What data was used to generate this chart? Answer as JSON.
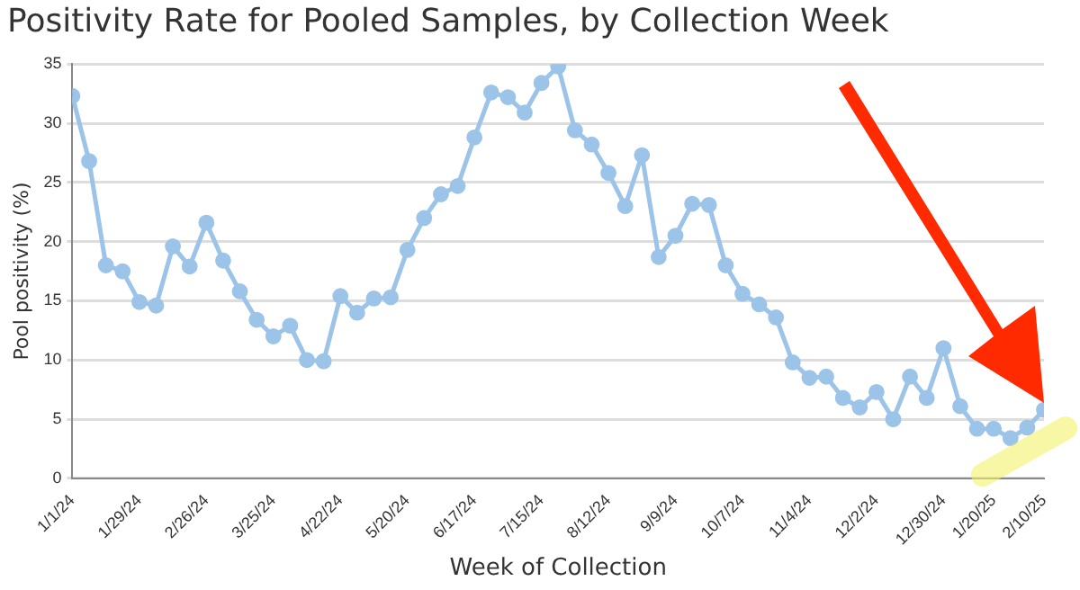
{
  "chart_data": {
    "type": "line",
    "title": "Positivity Rate for Pooled Samples, by Collection Week",
    "xlabel": "Week of Collection",
    "ylabel": "Pool positivity (%)",
    "x": [
      "2024-01-01",
      "2024-01-08",
      "2024-01-15",
      "2024-01-22",
      "2024-01-29",
      "2024-02-05",
      "2024-02-12",
      "2024-02-19",
      "2024-02-26",
      "2024-03-04",
      "2024-03-11",
      "2024-03-18",
      "2024-03-25",
      "2024-04-01",
      "2024-04-08",
      "2024-04-15",
      "2024-04-22",
      "2024-04-29",
      "2024-05-06",
      "2024-05-13",
      "2024-05-20",
      "2024-05-27",
      "2024-06-03",
      "2024-06-10",
      "2024-06-17",
      "2024-06-24",
      "2024-07-01",
      "2024-07-08",
      "2024-07-15",
      "2024-07-22",
      "2024-07-29",
      "2024-08-05",
      "2024-08-12",
      "2024-08-19",
      "2024-08-26",
      "2024-09-02",
      "2024-09-09",
      "2024-09-16",
      "2024-09-23",
      "2024-09-30",
      "2024-10-07",
      "2024-10-14",
      "2024-10-21",
      "2024-10-28",
      "2024-11-04",
      "2024-11-11",
      "2024-11-18",
      "2024-11-25",
      "2024-12-02",
      "2024-12-09",
      "2024-12-16",
      "2024-12-23",
      "2024-12-30",
      "2025-01-06",
      "2025-01-13",
      "2025-01-20",
      "2025-01-27",
      "2025-02-03",
      "2025-02-10"
    ],
    "series": [
      {
        "color": "#9cc3e8",
        "values": [
          32.3,
          26.8,
          18.0,
          17.5,
          14.9,
          14.6,
          19.6,
          17.9,
          21.6,
          18.4,
          15.8,
          13.4,
          12.0,
          12.9,
          10.0,
          9.9,
          15.4,
          14.0,
          15.2,
          15.3,
          19.3,
          22.0,
          24.0,
          24.7,
          28.8,
          32.6,
          32.2,
          30.9,
          33.4,
          34.8,
          29.4,
          28.2,
          25.8,
          23.0,
          27.3,
          18.7,
          20.5,
          23.2,
          23.1,
          18.0,
          15.6,
          14.7,
          13.6,
          9.8,
          8.5,
          8.6,
          6.8,
          6.0,
          7.3,
          5.0,
          8.6,
          6.8,
          11.0,
          6.1,
          4.2,
          4.2,
          3.4,
          4.3,
          5.8
        ]
      }
    ],
    "xlim": [
      "2024-01-01",
      "2025-02-10"
    ],
    "xticks": [
      {
        "value": "2024-01-01",
        "label": "1/1/24"
      },
      {
        "value": "2024-01-29",
        "label": "1/29/24"
      },
      {
        "value": "2024-02-26",
        "label": "2/26/24"
      },
      {
        "value": "2024-03-25",
        "label": "3/25/24"
      },
      {
        "value": "2024-04-22",
        "label": "4/22/24"
      },
      {
        "value": "2024-05-20",
        "label": "5/20/24"
      },
      {
        "value": "2024-06-17",
        "label": "6/17/24"
      },
      {
        "value": "2024-07-15",
        "label": "7/15/24"
      },
      {
        "value": "2024-08-12",
        "label": "8/12/24"
      },
      {
        "value": "2024-09-09",
        "label": "9/9/24"
      },
      {
        "value": "2024-10-07",
        "label": "10/7/24"
      },
      {
        "value": "2024-11-04",
        "label": "11/4/24"
      },
      {
        "value": "2024-12-02",
        "label": "12/2/24"
      },
      {
        "value": "2024-12-30",
        "label": "12/30/24"
      },
      {
        "value": "2025-01-20",
        "label": "1/20/25"
      },
      {
        "value": "2025-02-10",
        "label": "2/10/25"
      }
    ],
    "ylim": [
      0,
      35
    ],
    "yticks": [
      0,
      5,
      10,
      15,
      20,
      25,
      30,
      35
    ],
    "grid": "y",
    "legend": false,
    "marker": "circle",
    "line_style": "solid"
  }
}
